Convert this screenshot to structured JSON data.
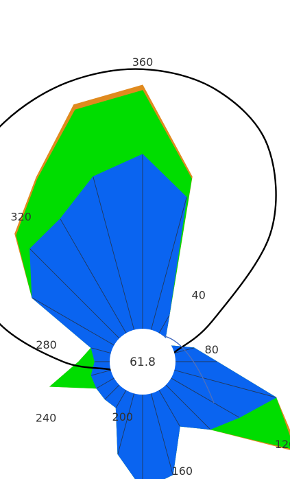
{
  "chart_data": {
    "type": "radar",
    "center_value": "61.8",
    "axis_labels": [
      {
        "text": "360",
        "angle": 360
      },
      {
        "text": "320",
        "angle": 320
      },
      {
        "text": "40",
        "angle": 40
      },
      {
        "text": "280",
        "angle": 280
      },
      {
        "text": "80",
        "angle": 80
      },
      {
        "text": "240",
        "angle": 240
      },
      {
        "text": "200",
        "angle": 200
      },
      {
        "text": "120",
        "angle": 120
      },
      {
        "text": "160",
        "angle": 160
      }
    ],
    "spokes_deg": [
      0,
      15,
      30,
      45,
      60,
      75,
      90,
      105,
      120,
      135,
      150,
      165,
      180,
      195,
      210,
      225,
      240,
      255,
      270,
      285,
      300,
      315,
      330,
      345
    ],
    "series": [
      {
        "color": "#e08a1e",
        "values_deg_r": [
          [
            0,
            2.6
          ],
          [
            15,
            1.8
          ],
          [
            30,
            0.5
          ],
          [
            45,
            0.3
          ],
          [
            60,
            0.3
          ],
          [
            75,
            0.5
          ],
          [
            90,
            0.7
          ],
          [
            105,
            1.3
          ],
          [
            120,
            1.7
          ],
          [
            135,
            0.9
          ],
          [
            150,
            0.7
          ],
          [
            165,
            1.1
          ],
          [
            180,
            1.2
          ],
          [
            195,
            0.9
          ],
          [
            210,
            0.5
          ],
          [
            225,
            0.5
          ],
          [
            240,
            0.5
          ],
          [
            255,
            0.9
          ],
          [
            270,
            0.6
          ],
          [
            285,
            0.5
          ],
          [
            300,
            1.2
          ],
          [
            315,
            1.7
          ],
          [
            330,
            2.0
          ],
          [
            345,
            2.5
          ]
        ]
      },
      {
        "color": "#00dd00",
        "values_deg_r": [
          [
            0,
            2.55
          ],
          [
            15,
            1.78
          ],
          [
            30,
            0.5
          ],
          [
            45,
            0.3
          ],
          [
            60,
            0.3
          ],
          [
            75,
            0.5
          ],
          [
            90,
            0.7
          ],
          [
            105,
            1.3
          ],
          [
            120,
            1.65
          ],
          [
            135,
            0.9
          ],
          [
            150,
            0.7
          ],
          [
            165,
            1.1
          ],
          [
            180,
            1.2
          ],
          [
            195,
            0.9
          ],
          [
            210,
            0.5
          ],
          [
            225,
            0.5
          ],
          [
            240,
            0.5
          ],
          [
            255,
            0.9
          ],
          [
            270,
            0.6
          ],
          [
            285,
            0.5
          ],
          [
            300,
            1.2
          ],
          [
            315,
            1.68
          ],
          [
            330,
            1.98
          ],
          [
            345,
            2.45
          ]
        ]
      },
      {
        "color": "#0a64f0",
        "values_deg_r": [
          [
            0,
            1.95
          ],
          [
            15,
            1.6
          ],
          [
            30,
            0.5
          ],
          [
            45,
            0.3
          ],
          [
            60,
            0.3
          ],
          [
            75,
            0.5
          ],
          [
            90,
            0.7
          ],
          [
            105,
            1.3
          ],
          [
            120,
            1.05
          ],
          [
            135,
            0.9
          ],
          [
            150,
            0.7
          ],
          [
            165,
            1.1
          ],
          [
            180,
            1.2
          ],
          [
            195,
            0.9
          ],
          [
            210,
            0.5
          ],
          [
            225,
            0.5
          ],
          [
            240,
            0.5
          ],
          [
            255,
            0.5
          ],
          [
            270,
            0.45
          ],
          [
            285,
            0.5
          ],
          [
            300,
            1.2
          ],
          [
            315,
            1.5
          ],
          [
            330,
            1.55
          ],
          [
            345,
            1.8
          ]
        ]
      }
    ],
    "outline_deg_r": [
      [
        0,
        2.75
      ],
      [
        15,
        2.65
      ],
      [
        30,
        2.35
      ],
      [
        45,
        1.7
      ],
      [
        60,
        0.75
      ],
      [
        75,
        0.3
      ],
      [
        90,
        0.3
      ],
      [
        105,
        0.3
      ],
      [
        120,
        0.3
      ],
      [
        135,
        0.3
      ],
      [
        150,
        0.3
      ],
      [
        165,
        0.3
      ],
      [
        180,
        0.3
      ],
      [
        195,
        0.3
      ],
      [
        210,
        0.3
      ],
      [
        225,
        0.3
      ],
      [
        240,
        0.3
      ],
      [
        255,
        0.3
      ],
      [
        270,
        0.75
      ],
      [
        285,
        1.4
      ],
      [
        300,
        2.0
      ],
      [
        315,
        2.4
      ],
      [
        330,
        2.6
      ],
      [
        345,
        2.72
      ]
    ],
    "arrow_deg": [
      10,
      120
    ]
  }
}
